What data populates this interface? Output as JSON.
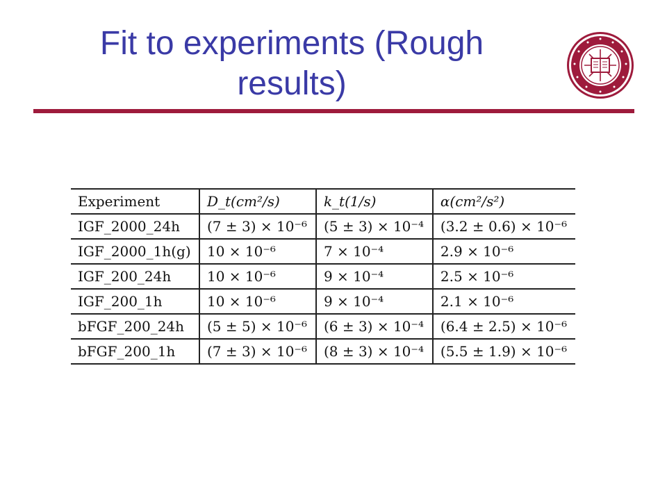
{
  "slide": {
    "title": "Fit to experiments (Rough results)"
  },
  "logo": {
    "name": "indiana-university-seal",
    "text": "INDIANENSIS UNIVERSITATIS SIGILLUM MDCCCXX",
    "colors": {
      "ring": "#9e1b3c",
      "background": "#ffffff"
    }
  },
  "colors": {
    "title": "#3a3aa6",
    "rule": "#9e1b3c"
  },
  "table": {
    "headers": [
      "Experiment",
      "D_t(cm²/s)",
      "k_t(1/s)",
      "α(cm²/s²)"
    ],
    "rows": [
      [
        "IGF_2000_24h",
        "(7 ± 3) × 10⁻⁶",
        "(5 ± 3) × 10⁻⁴",
        "(3.2 ± 0.6) × 10⁻⁶"
      ],
      [
        "IGF_2000_1h(g)",
        "10 × 10⁻⁶",
        "7 × 10⁻⁴",
        "2.9 × 10⁻⁶"
      ],
      [
        "IGF_200_24h",
        "10 × 10⁻⁶",
        "9 × 10⁻⁴",
        "2.5 × 10⁻⁶"
      ],
      [
        "IGF_200_1h",
        "10 × 10⁻⁶",
        "9 × 10⁻⁴",
        "2.1 × 10⁻⁶"
      ],
      [
        "bFGF_200_24h",
        "(5 ± 5) × 10⁻⁶",
        "(6 ± 3) × 10⁻⁴",
        "(6.4 ± 2.5) × 10⁻⁶"
      ],
      [
        "bFGF_200_1h",
        "(7 ± 3) × 10⁻⁶",
        "(8 ± 3) × 10⁻⁴",
        "(5.5 ± 1.9) × 10⁻⁶"
      ]
    ]
  }
}
